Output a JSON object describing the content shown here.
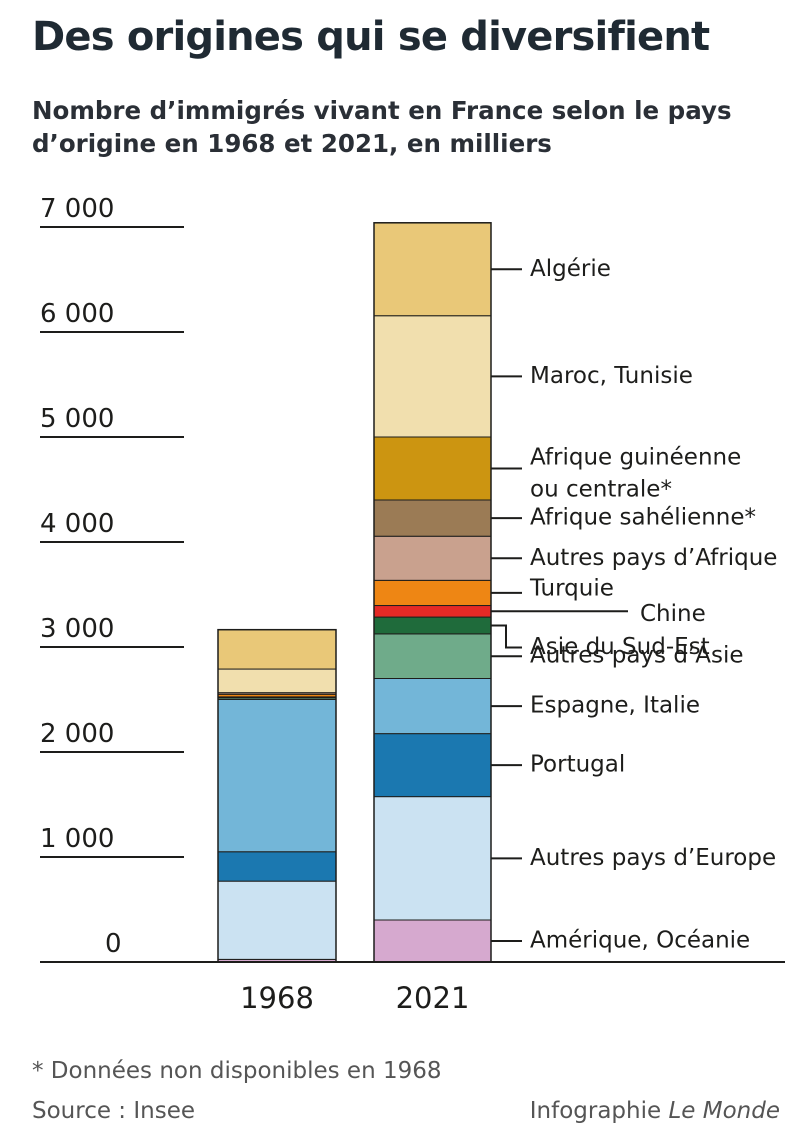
{
  "header": {
    "title": "Des origines qui se diversifient",
    "subtitle": "Nombre d’immigrés vivant en France selon le pays d’origine en 1968 et 2021, en milliers"
  },
  "footer": {
    "footnote": "* Données non disponibles en 1968",
    "source": "Source : Insee",
    "credit_prefix": "Infographie ",
    "credit_brand": "Le Monde"
  },
  "chart_data": {
    "type": "bar",
    "stacked": true,
    "categories": [
      "1968",
      "2021"
    ],
    "yticks": [
      0,
      1000,
      2000,
      3000,
      4000,
      5000,
      6000,
      7000
    ],
    "ytick_labels": [
      "0",
      "1 000",
      "2 000",
      "3 000",
      "4 000",
      "5 000",
      "6 000",
      "7 000"
    ],
    "ylim": [
      0,
      7000
    ],
    "grid": false,
    "legend_position": "right of 2021 bar",
    "series": [
      {
        "name": "Amérique, Océanie",
        "color": "#d6a9cf",
        "values": [
          25,
          400
        ]
      },
      {
        "name": "Autres pays d’Europe",
        "color": "#cbe2f2",
        "values": [
          745,
          1175
        ]
      },
      {
        "name": "Portugal",
        "color": "#1b78b0",
        "values": [
          280,
          600
        ]
      },
      {
        "name": "Espagne, Italie",
        "color": "#73b6d8",
        "values": [
          1450,
          525
        ]
      },
      {
        "name": "Autres pays d’Asie",
        "color": "#6fab8a",
        "values": [
          15,
          425
        ]
      },
      {
        "name": "Asie du Sud-Est",
        "color": "#1f6b3b",
        "values": [
          5,
          160
        ]
      },
      {
        "name": "Chine",
        "color": "#e42a26",
        "values": [
          5,
          110
        ]
      },
      {
        "name": "Turquie",
        "color": "#ee8614",
        "values": [
          25,
          240
        ]
      },
      {
        "name": "Autres pays d’Afrique",
        "color": "#c9a18e",
        "values": [
          15,
          420
        ]
      },
      {
        "name": "Afrique sahélienne*",
        "color": "#9b7b55",
        "values": [
          0,
          345
        ]
      },
      {
        "name": "Afrique guinéenne ou centrale*",
        "color": "#cc9511",
        "values": [
          0,
          600
        ]
      },
      {
        "name": "Maroc, Tunisie",
        "color": "#f1dfae",
        "values": [
          225,
          1155
        ]
      },
      {
        "name": "Algérie",
        "color": "#e9c878",
        "values": [
          375,
          885
        ]
      }
    ]
  }
}
